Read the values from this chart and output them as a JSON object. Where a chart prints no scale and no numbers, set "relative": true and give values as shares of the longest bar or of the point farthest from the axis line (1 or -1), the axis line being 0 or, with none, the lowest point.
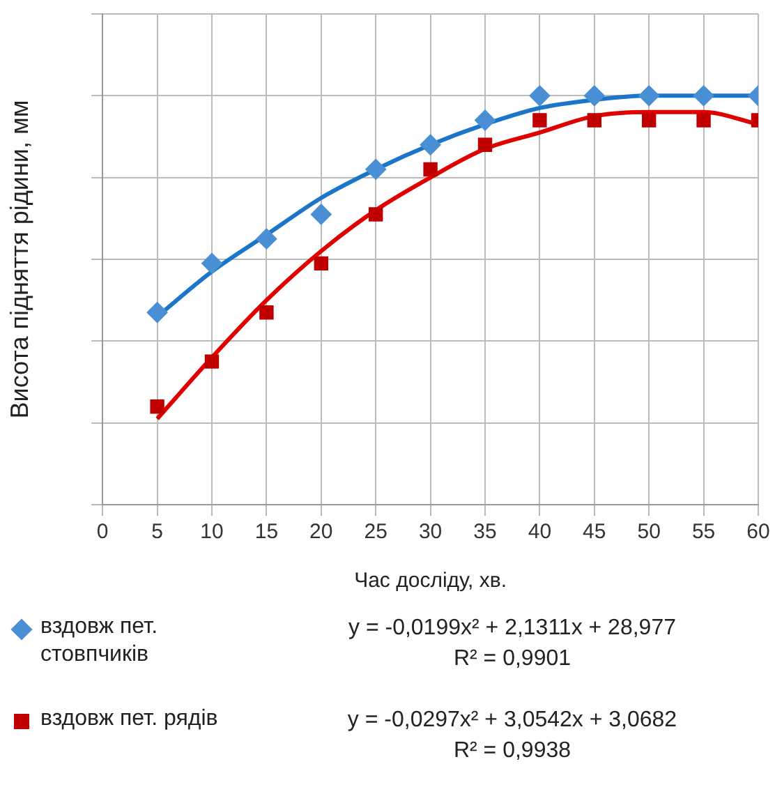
{
  "chart_data": {
    "type": "scatter",
    "relative": true,
    "xlabel": "Час досліду, хв.",
    "ylabel": "Висота підняття рідини, мм",
    "xlim": [
      0,
      60
    ],
    "xticks": [
      0,
      5,
      10,
      15,
      20,
      25,
      30,
      35,
      40,
      45,
      50,
      55,
      60
    ],
    "grid": true,
    "legend": "bottom",
    "x": [
      5,
      10,
      15,
      20,
      25,
      30,
      35,
      40,
      45,
      50,
      55,
      60
    ],
    "series": [
      {
        "name": "вздовж пет. стовпчиків",
        "color": "#4a8fd4",
        "marker": "diamond",
        "values": [
          0.47,
          0.59,
          0.65,
          0.71,
          0.82,
          0.88,
          0.94,
          1,
          1,
          1,
          1,
          1
        ]
      },
      {
        "name": "вздовж пет. рядів",
        "color": "#c00000",
        "marker": "square",
        "values": [
          0.24,
          0.35,
          0.47,
          0.59,
          0.71,
          0.82,
          0.88,
          0.94,
          0.94,
          0.94,
          0.94,
          0.94
        ]
      },
      {
        "type": "line",
        "color": "#1b75c9",
        "marker": "none",
        "x": [
          5,
          10,
          15,
          20,
          25,
          30,
          35,
          40,
          45,
          50,
          55,
          60
        ],
        "values": [
          0.46,
          0.57,
          0.66,
          0.75,
          0.82,
          0.88,
          0.93,
          0.97,
          0.99,
          1,
          1,
          1
        ]
      },
      {
        "type": "line",
        "color": "#e00000",
        "marker": "none",
        "x": [
          5,
          10,
          15,
          20,
          25,
          30,
          35,
          40,
          45,
          50,
          55,
          60
        ],
        "values": [
          0.21,
          0.36,
          0.5,
          0.62,
          0.72,
          0.8,
          0.87,
          0.91,
          0.95,
          0.96,
          0.96,
          0.93
        ]
      }
    ],
    "annotations": [
      "y = -0,0199x² + 2,1311x + 28,977",
      "R² = 0,9901",
      "y = -0,0297x² + 3,0542x + 3,0682",
      "R² = 0,9938"
    ]
  }
}
